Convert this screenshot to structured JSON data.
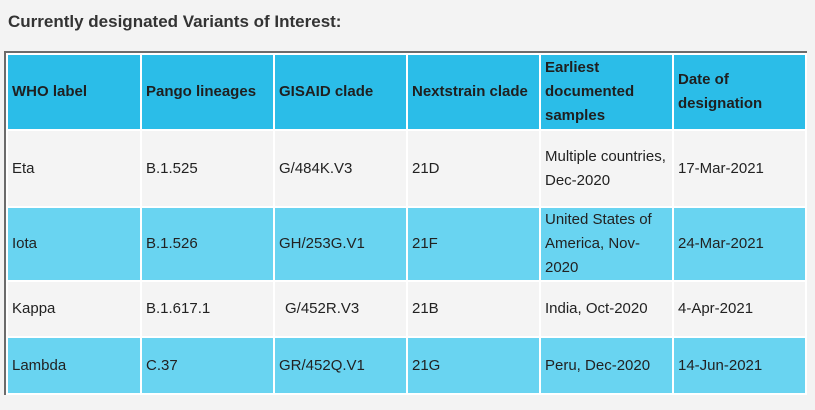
{
  "heading": "Currently designated Variants of Interest:",
  "table": {
    "columns": [
      "WHO label",
      "Pango lineages",
      "GISAID clade",
      "Nextstrain clade",
      "Earliest documented samples",
      "Date of designation"
    ],
    "rows": [
      [
        "Eta",
        "B.1.525",
        "G/484K.V3",
        "21D",
        "Multiple countries, Dec-2020",
        "17-Mar-2021"
      ],
      [
        "Iota",
        "B.1.526",
        "GH/253G.V1",
        "21F",
        "United States of America, Nov-2020",
        "24-Mar-2021"
      ],
      [
        "Kappa",
        "B.1.617.1",
        "G/452R.V3",
        "21B",
        "India, Oct-2020",
        "4-Apr-2021"
      ],
      [
        "Lambda",
        "C.37",
        "GR/452Q.V1",
        "21G",
        "Peru, Dec-2020",
        "14-Jun-2021"
      ]
    ]
  },
  "colors": {
    "header_bg": "#2bbde8",
    "row_light_bg": "#f4f4f4",
    "row_blue_bg": "#69d4f1",
    "page_bg": "#f3f3f3"
  }
}
